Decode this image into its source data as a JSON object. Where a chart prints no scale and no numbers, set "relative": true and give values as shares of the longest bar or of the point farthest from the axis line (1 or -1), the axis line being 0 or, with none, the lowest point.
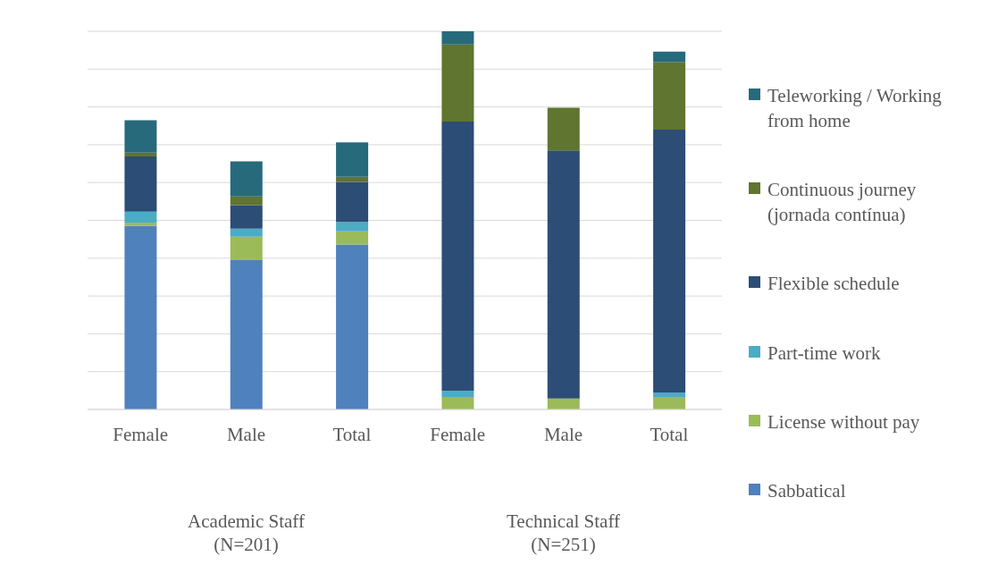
{
  "chart_data": {
    "type": "bar",
    "stacked": true,
    "relative": true,
    "grid": "y",
    "legend": "right",
    "categories": [
      "Female",
      "Male",
      "Total",
      "Female",
      "Male",
      "Total"
    ],
    "annotations": [
      "Academic Staff (N=201)",
      "Technical Staff (N=251)"
    ],
    "series": [
      {
        "name": "Sabbatical",
        "color": "#4f81bd",
        "values": [
          0.486,
          0.395,
          0.436,
          0,
          0,
          0
        ]
      },
      {
        "name": "License without pay",
        "color": "#9bbb59",
        "values": [
          0.008,
          0.062,
          0.035,
          0.033,
          0.029,
          0.033
        ]
      },
      {
        "name": "Part-time work",
        "color": "#4bacc6",
        "values": [
          0.029,
          0.021,
          0.025,
          0.016,
          0,
          0.012
        ]
      },
      {
        "name": "Flexible schedule",
        "color": "#2c4d75",
        "values": [
          0.146,
          0.062,
          0.105,
          0.712,
          0.656,
          0.695
        ]
      },
      {
        "name": "Continuous  journey (jornada contínua)",
        "color": "#5f7530",
        "values": [
          0.01,
          0.023,
          0.014,
          0.204,
          0.113,
          0.179
        ]
      },
      {
        "name": "Teleworking / Working from home",
        "color": "#276a7c",
        "values": [
          0.086,
          0.093,
          0.091,
          0.035,
          0,
          0.027
        ]
      }
    ]
  }
}
